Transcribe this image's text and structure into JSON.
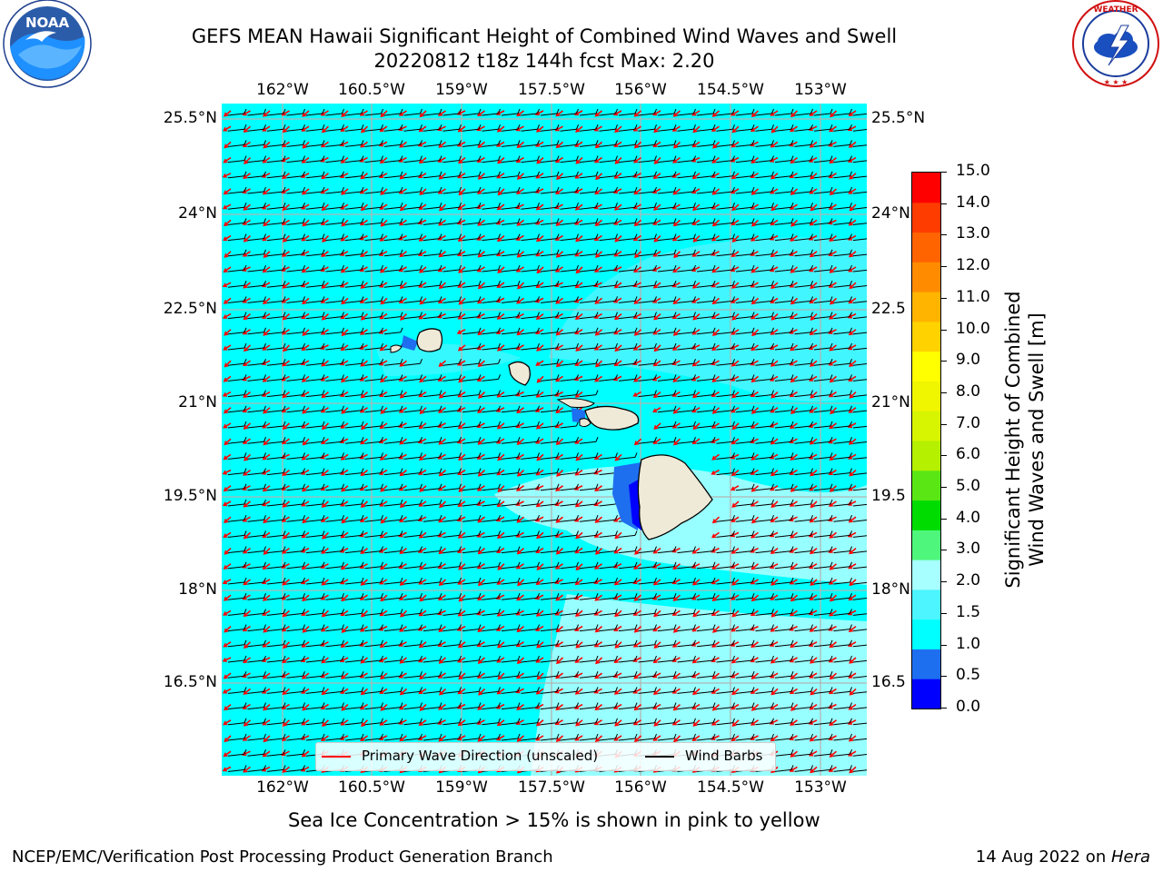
{
  "header": {
    "title_line1": "GEFS MEAN Hawaii Significant Height of Combined Wind Waves and Swell",
    "title_line2": "20220812 t18z 144h fcst   Max: 2.20"
  },
  "logos": {
    "left": {
      "icon": "noaa-logo-icon",
      "text": "NOAA",
      "ring_text": "NATIONAL OCEANIC AND ATMOSPHERIC ADMINISTRATION · U.S. DEPARTMENT OF COMMERCE"
    },
    "right": {
      "icon": "nws-logo-icon",
      "ring_text": "NATIONAL WEATHER SERVICE"
    }
  },
  "map": {
    "lon_labels": [
      "162°W",
      "160.5°W",
      "159°W",
      "157.5°W",
      "156°W",
      "154.5°W",
      "153°W"
    ],
    "lat_labels": [
      "25.5°N",
      "24°N",
      "22.5°N",
      "21°N",
      "19.5°N",
      "18°N",
      "16.5°N"
    ],
    "right_lat_labels": [
      "25.5°N",
      "24°N",
      "22.5",
      "21°N",
      "19.5",
      "18°N",
      "16.5"
    ],
    "colors": {
      "ocean_main": "#00ffff",
      "ocean_light": "#a7ffff",
      "ocean_mid": "#4cf5ff",
      "land": "#efe9d8",
      "wave_arrow": "#ff0000",
      "wind_barb": "#000000"
    }
  },
  "legend": {
    "wave_label": "Primary Wave Direction (unscaled)",
    "barb_label": "Wind Barbs"
  },
  "colorbar": {
    "title_line1": "Significant Height of Combined",
    "title_line2": "Wind Waves and Swell [m]",
    "ticks": [
      "15.0",
      "14.0",
      "13.0",
      "12.0",
      "11.0",
      "10.0",
      "9.0",
      "8.0",
      "7.0",
      "6.0",
      "5.0",
      "4.0",
      "3.0",
      "2.0",
      "1.5",
      "1.0",
      "0.5",
      "0.0"
    ],
    "bands_bottom_to_top": [
      "#0000ff",
      "#1e6ef0",
      "#00ffff",
      "#4cf5ff",
      "#a7ffff",
      "#4ef77c",
      "#00dc00",
      "#5ae614",
      "#b4f000",
      "#d7f500",
      "#f0f500",
      "#ffff00",
      "#ffd200",
      "#ffb400",
      "#ff8c00",
      "#ff6400",
      "#ff3c00",
      "#ff0000"
    ]
  },
  "notes": {
    "sea_ice": "Sea Ice Concentration > 15% is shown in pink to yellow"
  },
  "footer": {
    "left": "NCEP/EMC/Verification Post Processing Product Generation Branch",
    "date": "14 Aug 2022 on ",
    "machine": "Hera"
  }
}
